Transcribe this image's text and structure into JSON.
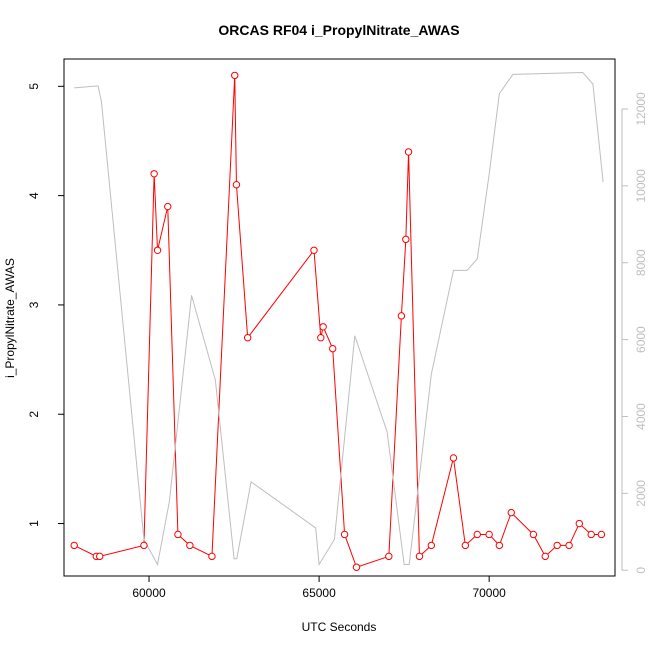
{
  "chart_data": {
    "type": "line",
    "title": "ORCAS RF04 i_PropylNitrate_AWAS",
    "xlabel": "UTC Seconds",
    "ylabel": "i_PropylNitrate_AWAS",
    "xlim": [
      57500,
      73700
    ],
    "ylim": [
      0.52,
      5.25
    ],
    "y2lim": [
      -150,
      13300
    ],
    "x_ticks": [
      60000,
      65000,
      70000
    ],
    "y_ticks": [
      1,
      2,
      3,
      4,
      5
    ],
    "y2_ticks": [
      0,
      2000,
      4000,
      6000,
      8000,
      10000,
      12000
    ],
    "grid": false,
    "legend": "none",
    "colors": {
      "primary": "#ff0000",
      "secondary": "#bebebe",
      "frame": "#000000"
    },
    "series": [
      {
        "axis": "left",
        "style": "line+points",
        "points": [
          [
            57800,
            0.8
          ],
          [
            58450,
            0.7
          ],
          [
            58550,
            0.7
          ],
          [
            59850,
            0.8
          ],
          [
            60150,
            4.2
          ],
          [
            60250,
            3.5
          ],
          [
            60550,
            3.9
          ],
          [
            60850,
            0.9
          ],
          [
            61200,
            0.8
          ],
          [
            61850,
            0.7
          ],
          [
            62520,
            5.1
          ],
          [
            62570,
            4.1
          ],
          [
            62900,
            2.7
          ],
          [
            64850,
            3.5
          ],
          [
            65050,
            2.7
          ],
          [
            65120,
            2.8
          ],
          [
            65400,
            2.6
          ],
          [
            65750,
            0.9
          ],
          [
            66100,
            0.6
          ],
          [
            67050,
            0.7
          ],
          [
            67420,
            2.9
          ],
          [
            67550,
            3.6
          ],
          [
            67630,
            4.4
          ],
          [
            67950,
            0.7
          ],
          [
            68300,
            0.8
          ],
          [
            68950,
            1.6
          ],
          [
            69300,
            0.8
          ],
          [
            69650,
            0.9
          ],
          [
            70000,
            0.9
          ],
          [
            70300,
            0.8
          ],
          [
            70650,
            1.1
          ],
          [
            71300,
            0.9
          ],
          [
            71650,
            0.7
          ],
          [
            72000,
            0.8
          ],
          [
            72350,
            0.8
          ],
          [
            72650,
            1.0
          ],
          [
            73000,
            0.9
          ],
          [
            73300,
            0.9
          ]
        ]
      },
      {
        "axis": "right",
        "style": "line",
        "points": [
          [
            57800,
            12550
          ],
          [
            58500,
            12600
          ],
          [
            58600,
            12200
          ],
          [
            59850,
            800
          ],
          [
            60250,
            150
          ],
          [
            60600,
            1800
          ],
          [
            61250,
            7150
          ],
          [
            61950,
            4950
          ],
          [
            62500,
            300
          ],
          [
            62580,
            300
          ],
          [
            63000,
            2300
          ],
          [
            64900,
            1100
          ],
          [
            65000,
            150
          ],
          [
            65450,
            800
          ],
          [
            66050,
            6100
          ],
          [
            67000,
            3600
          ],
          [
            67500,
            150
          ],
          [
            67650,
            150
          ],
          [
            68300,
            5100
          ],
          [
            68950,
            7800
          ],
          [
            69350,
            7800
          ],
          [
            69650,
            8100
          ],
          [
            70000,
            10300
          ],
          [
            70300,
            12400
          ],
          [
            70700,
            12900
          ],
          [
            72750,
            12950
          ],
          [
            73050,
            12650
          ],
          [
            73350,
            10100
          ]
        ]
      }
    ]
  }
}
